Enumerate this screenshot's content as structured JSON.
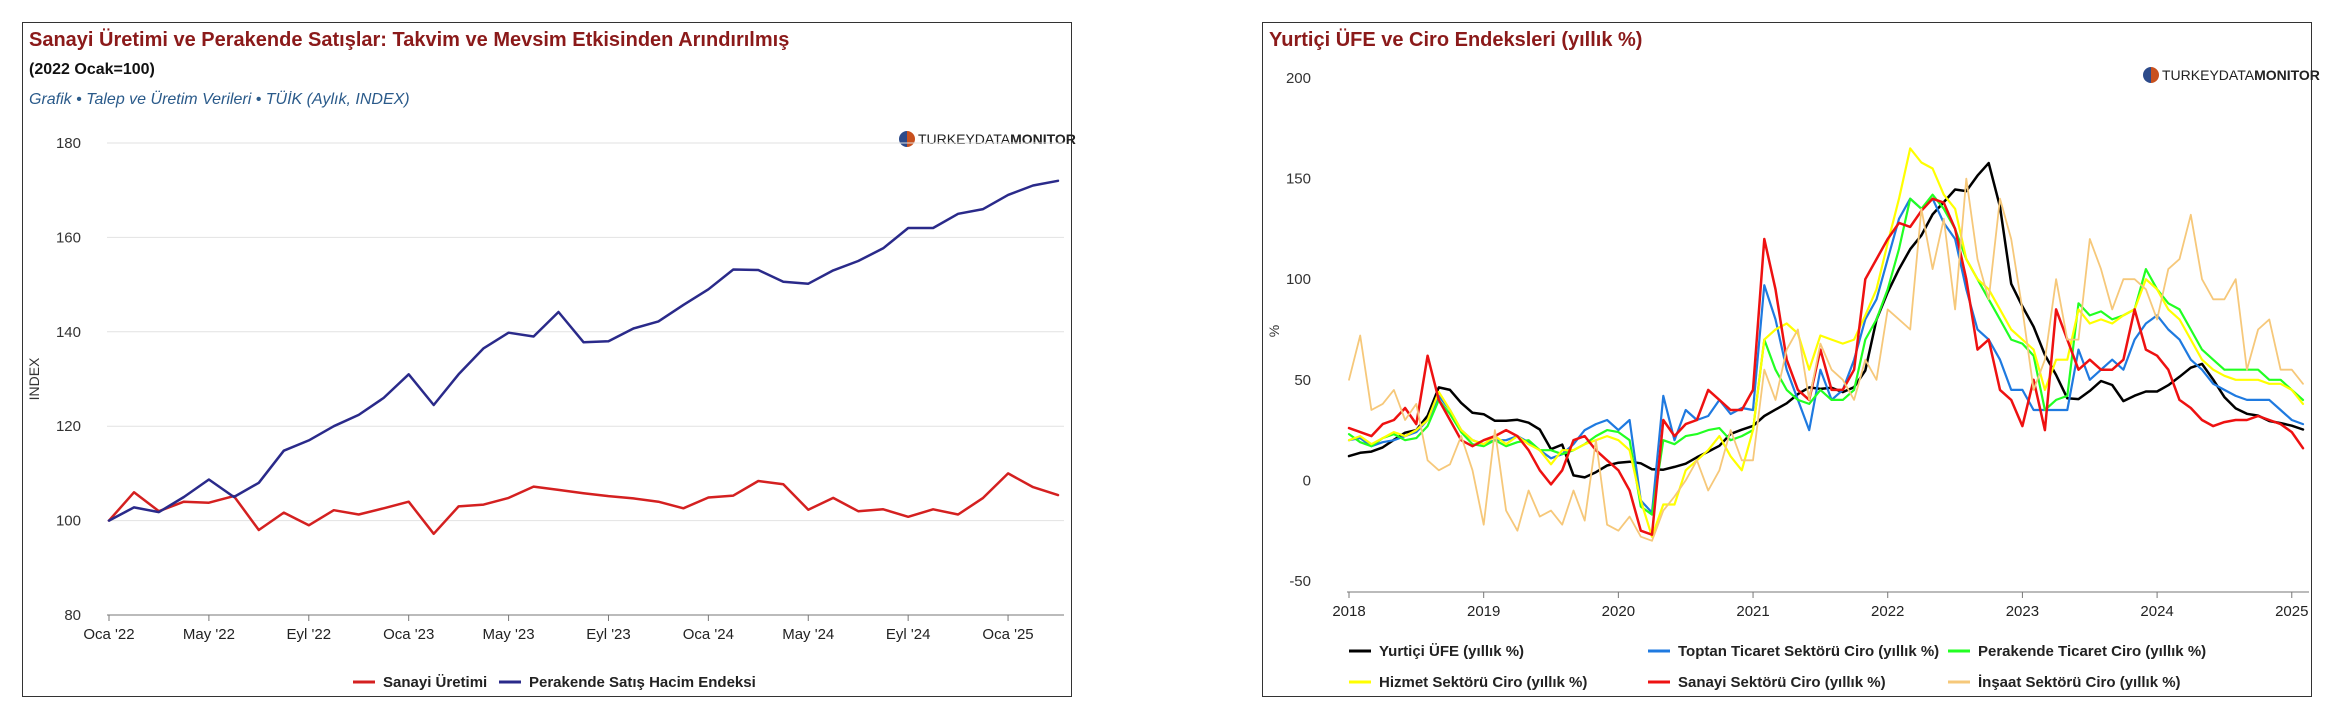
{
  "brand": {
    "light": "TURKEY",
    "mid": "DATA",
    "bold": "MONITOR"
  },
  "left": {
    "title": "Sanayi Üretimi ve Perakende Satışlar: Takvim ve Mevsim Etkisinden Arındırılmış",
    "subtitle": "(2022 Ocak=100)",
    "source": "Grafik • Talep ve Üretim Verileri • TÜİK (Aylık, INDEX)"
  },
  "right": {
    "title": "Yurtiçi ÜFE ve Ciro Endeksleri (yıllık %)"
  },
  "chart_data": [
    {
      "type": "line",
      "title": "Sanayi Üretimi ve Perakende Satışlar: Takvim ve Mevsim Etkisinden Arındırılmış",
      "ylabel": "INDEX",
      "xlabel": "",
      "ylim": [
        80,
        180
      ],
      "yticks": [
        80,
        100,
        120,
        140,
        160,
        180
      ],
      "x_start": "2022-01",
      "n_points": 39,
      "xtick_labels": [
        {
          "i": 0,
          "label": "Oca '22"
        },
        {
          "i": 4,
          "label": "May '22"
        },
        {
          "i": 8,
          "label": "Eyl '22"
        },
        {
          "i": 12,
          "label": "Oca '23"
        },
        {
          "i": 16,
          "label": "May '23"
        },
        {
          "i": 20,
          "label": "Eyl '23"
        },
        {
          "i": 24,
          "label": "Oca '24"
        },
        {
          "i": 28,
          "label": "May '24"
        },
        {
          "i": 32,
          "label": "Eyl '24"
        },
        {
          "i": 36,
          "label": "Oca '25"
        }
      ],
      "legend_position": "bottom",
      "series": [
        {
          "name": "Sanayi Üretimi",
          "color": "#d42020",
          "values": [
            100,
            106,
            102,
            104,
            103.8,
            105.2,
            98,
            101.7,
            99,
            102.2,
            101.3,
            102.6,
            104,
            97.2,
            103,
            103.4,
            104.8,
            107.2,
            106.5,
            105.8,
            105.2,
            104.7,
            104,
            102.6,
            104.9,
            105.3,
            108.4,
            107.7,
            102.3,
            104.8,
            102,
            102.4,
            100.8,
            102.4,
            101.3,
            104.8,
            110,
            107.1,
            105.4
          ]
        },
        {
          "name": "Perakende Satış Hacim Endeksi",
          "color": "#2a2a8a",
          "values": [
            100,
            102.8,
            101.8,
            105,
            108.7,
            105,
            108,
            114.8,
            117,
            120,
            122.4,
            126,
            131,
            124.5,
            131,
            136.5,
            139.8,
            139,
            144.2,
            137.8,
            138,
            140.7,
            142.2,
            145.7,
            149,
            153.2,
            153.1,
            150.6,
            150.2,
            153,
            155,
            157.7,
            162,
            162,
            165,
            166,
            169,
            171,
            172
          ]
        }
      ]
    },
    {
      "type": "line",
      "title": "Yurtiçi ÜFE ve Ciro Endeksleri (yıllık %)",
      "ylabel": "%",
      "xlabel": "",
      "ylim": [
        -50,
        200
      ],
      "yticks": [
        -50,
        0,
        50,
        100,
        150,
        200
      ],
      "x_start": "2018-01",
      "n_points": 86,
      "xtick_labels": [
        {
          "i": 0,
          "label": "2018"
        },
        {
          "i": 12,
          "label": "2019"
        },
        {
          "i": 24,
          "label": "2020"
        },
        {
          "i": 36,
          "label": "2021"
        },
        {
          "i": 48,
          "label": "2022"
        },
        {
          "i": 60,
          "label": "2023"
        },
        {
          "i": 72,
          "label": "2024"
        },
        {
          "i": 84,
          "label": "2025"
        }
      ],
      "legend_position": "bottom",
      "series": [
        {
          "name": "Yurtiçi ÜFE (yıllık %)",
          "color": "#000000",
          "values": [
            12.1,
            13.7,
            14.3,
            16.4,
            20.2,
            23.7,
            25,
            32.1,
            46.2,
            45,
            38.5,
            33.6,
            32.9,
            29.6,
            29.6,
            30.1,
            28.7,
            25.3,
            15.5,
            17.8,
            2.5,
            1.5,
            4.1,
            7.4,
            8.8,
            9.3,
            8.5,
            5.5,
            5.3,
            6.7,
            8.3,
            11.5,
            14.3,
            17.2,
            23.1,
            25.2,
            27.1,
            32,
            35.2,
            38.3,
            42.9,
            46.2,
            45.5,
            46,
            43.9,
            46.3,
            54.6,
            79.9,
            93.5,
            105,
            114.9,
            121.8,
            132.2,
            138.3,
            144.6,
            143.8,
            151.5,
            157.7,
            136,
            97.7,
            86.5,
            76.4,
            62.4,
            52.4,
            40.8,
            40.4,
            44.5,
            49.4,
            47.4,
            39.4,
            42.1,
            44.2,
            44.2,
            47.3,
            51.5,
            56,
            57.9,
            50.1,
            41.4,
            35.8,
            33.1,
            32.2,
            29.5,
            28.5,
            27.2,
            25.3
          ]
        },
        {
          "name": "Toptan Ticaret Sektörü Ciro (yıllık %)",
          "color": "#1f7ae0",
          "values": [
            20,
            21,
            17,
            19,
            20,
            22,
            24,
            30,
            42,
            35,
            25,
            20,
            18,
            20,
            20,
            22,
            19,
            15,
            11,
            13,
            18,
            25,
            28,
            30,
            25,
            30,
            -10,
            -16,
            42,
            20,
            35,
            30,
            32,
            40,
            33,
            36,
            35,
            97,
            80,
            55,
            40,
            25,
            55,
            40,
            45,
            60,
            80,
            90,
            110,
            130,
            140,
            135,
            140,
            128,
            120,
            95,
            75,
            70,
            60,
            45,
            45,
            35,
            35,
            35,
            35,
            65,
            50,
            55,
            60,
            55,
            70,
            78,
            82,
            75,
            70,
            60,
            55,
            48,
            45,
            42,
            40,
            40,
            40,
            35,
            30,
            28
          ]
        },
        {
          "name": "Perakende Ticaret Ciro (yıllık %)",
          "color": "#22ff22",
          "values": [
            23,
            19,
            17,
            21,
            23,
            20,
            21,
            27,
            40,
            33,
            24,
            18,
            17,
            20,
            17,
            19,
            20,
            15,
            15,
            13,
            15,
            18,
            22,
            25,
            24,
            20,
            -13,
            -17,
            20,
            18,
            22,
            23,
            25,
            26,
            20,
            22,
            25,
            70,
            55,
            45,
            40,
            38,
            45,
            40,
            40,
            45,
            70,
            80,
            95,
            115,
            140,
            135,
            142,
            135,
            125,
            110,
            100,
            90,
            80,
            70,
            68,
            62,
            35,
            40,
            42,
            88,
            82,
            84,
            80,
            82,
            85,
            105,
            95,
            88,
            85,
            75,
            65,
            60,
            55,
            55,
            55,
            55,
            50,
            50,
            45,
            40
          ]
        },
        {
          "name": "Hizmet Sektörü Ciro (yıllık %)",
          "color": "#ffff00",
          "values": [
            20,
            22,
            18,
            21,
            24,
            22,
            25,
            30,
            44,
            35,
            25,
            20,
            18,
            22,
            18,
            22,
            18,
            15,
            8,
            15,
            15,
            18,
            20,
            22,
            20,
            15,
            -10,
            -28,
            -12,
            -12,
            5,
            10,
            15,
            22,
            12,
            5,
            25,
            70,
            75,
            78,
            73,
            55,
            72,
            70,
            68,
            70,
            82,
            95,
            118,
            140,
            165,
            158,
            155,
            142,
            135,
            110,
            100,
            95,
            85,
            75,
            70,
            65,
            45,
            60,
            60,
            85,
            78,
            80,
            78,
            82,
            85,
            100,
            95,
            85,
            80,
            70,
            60,
            55,
            52,
            50,
            50,
            50,
            48,
            48,
            45,
            38
          ]
        },
        {
          "name": "Sanayi Sektörü Ciro (yıllık %)",
          "color": "#ee1111",
          "values": [
            26,
            24,
            22,
            28,
            30,
            36,
            28,
            62,
            40,
            30,
            20,
            17,
            20,
            22,
            25,
            22,
            15,
            5,
            -2,
            5,
            20,
            22,
            15,
            10,
            5,
            -5,
            -25,
            -27,
            30,
            22,
            28,
            30,
            45,
            40,
            35,
            35,
            45,
            120,
            95,
            60,
            45,
            40,
            65,
            45,
            45,
            55,
            100,
            110,
            120,
            128,
            126,
            134,
            140,
            138,
            125,
            100,
            65,
            70,
            45,
            40,
            27,
            50,
            25,
            85,
            70,
            55,
            60,
            55,
            55,
            60,
            85,
            65,
            62,
            55,
            40,
            36,
            30,
            27,
            29,
            30,
            30,
            32,
            30,
            28,
            24,
            16
          ]
        },
        {
          "name": "İnşaat Sektörü Ciro (yıllık %)",
          "color": "#f6c87a",
          "values": [
            50,
            72,
            35,
            38,
            45,
            30,
            38,
            10,
            5,
            8,
            22,
            5,
            -22,
            25,
            -15,
            -25,
            -5,
            -18,
            -15,
            -22,
            -5,
            -20,
            20,
            -22,
            -25,
            -18,
            -28,
            -30,
            -15,
            -8,
            0,
            10,
            -5,
            5,
            25,
            10,
            10,
            55,
            40,
            65,
            75,
            40,
            68,
            55,
            50,
            40,
            60,
            50,
            85,
            80,
            75,
            135,
            105,
            130,
            85,
            150,
            110,
            90,
            140,
            120,
            85,
            45,
            60,
            100,
            70,
            70,
            120,
            105,
            85,
            100,
            100,
            95,
            80,
            105,
            110,
            132,
            100,
            90,
            90,
            100,
            55,
            75,
            80,
            55,
            55,
            48
          ]
        }
      ]
    }
  ]
}
